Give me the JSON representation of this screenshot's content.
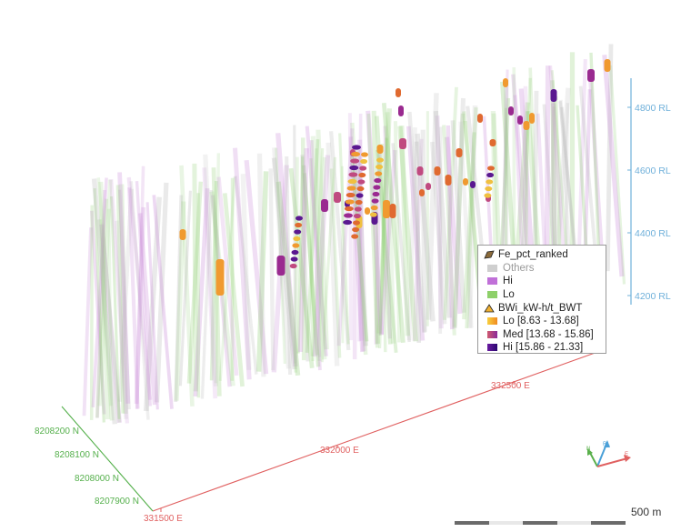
{
  "scene": {
    "rl_axis": {
      "color": "#6fb0da",
      "labels": [
        "4800 RL",
        "4600 RL",
        "4400 RL",
        "4200 RL"
      ]
    },
    "east_axis": {
      "color": "#e06060",
      "labels": [
        "332500 E",
        "332000 E",
        "331500 E"
      ]
    },
    "north_axis": {
      "color": "#55b04c",
      "labels": [
        "8208200 N",
        "8208100 N",
        "8208000 N",
        "8207900 N"
      ]
    }
  },
  "legend": {
    "group1": {
      "title": "Fe_pct_ranked",
      "items": [
        {
          "label": "Others",
          "color": "#cfcfcf",
          "dim": true
        },
        {
          "label": "Hi",
          "color": "#c070d8",
          "dim": false
        },
        {
          "label": "Lo",
          "color": "#8ed06a",
          "dim": false
        }
      ]
    },
    "group2": {
      "title": "BWi_kW-h/t_BWT",
      "items": [
        {
          "label": "Lo [8.63 - 13.68]",
          "color": "#f0a030"
        },
        {
          "label": "Med [13.68 - 15.86]",
          "color": "#b03a88"
        },
        {
          "label": "Hi [15.86 - 21.33]",
          "color": "#4a108a"
        }
      ]
    }
  },
  "gizmo": {
    "n_label": "N",
    "rl_label": "RL",
    "e_label": "E"
  },
  "scale": {
    "label": "500 m"
  }
}
